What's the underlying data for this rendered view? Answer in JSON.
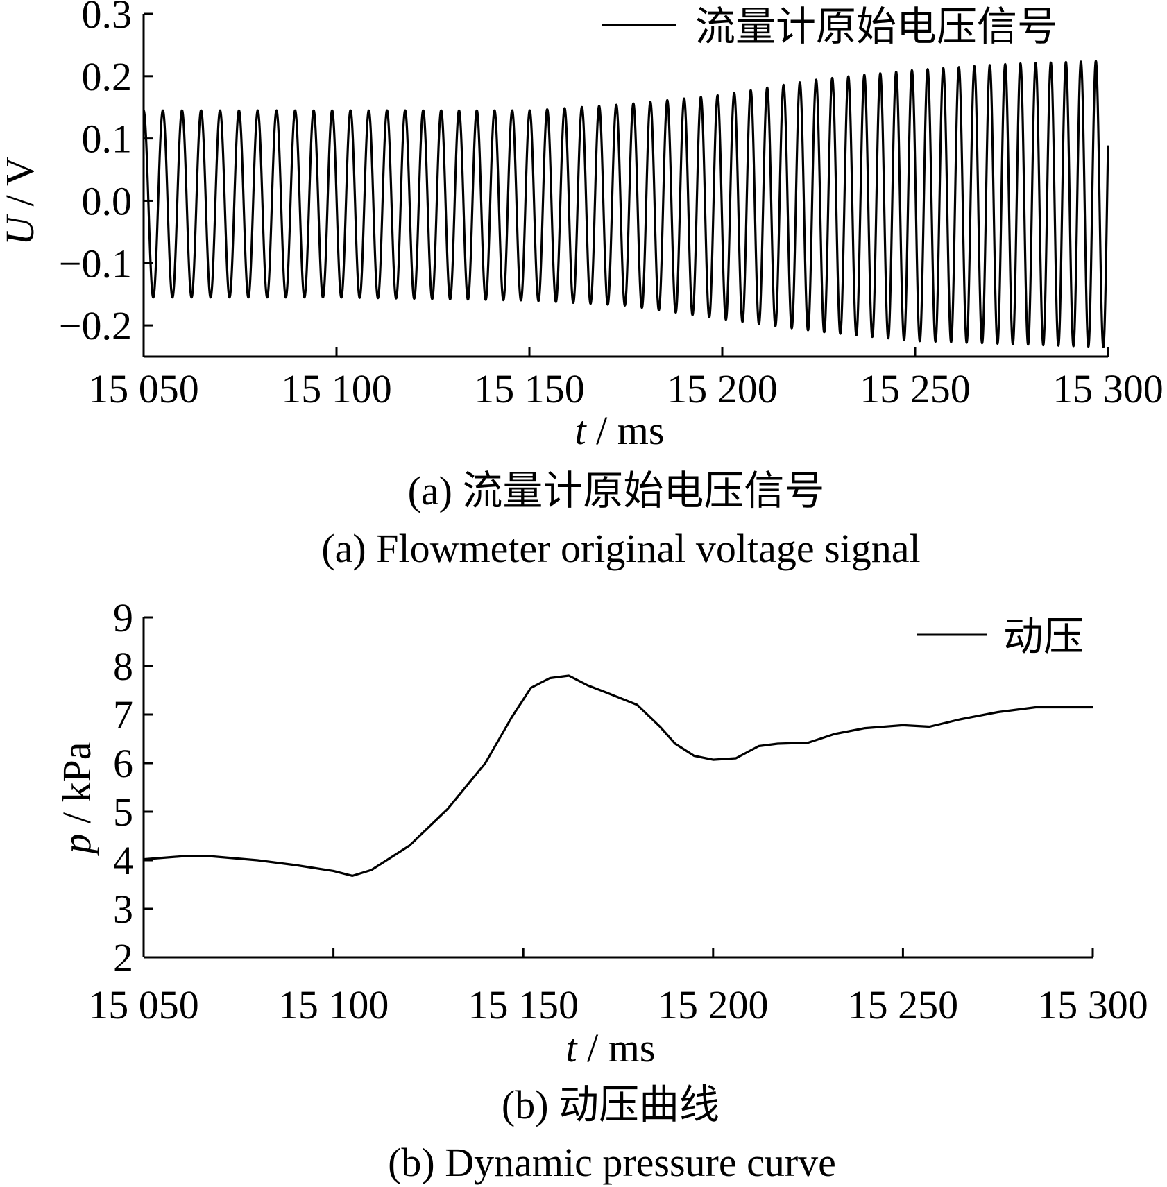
{
  "chart_data": [
    {
      "type": "line",
      "id": "a",
      "xlabel": {
        "var": "t",
        "unit": " / ms"
      },
      "ylabel": {
        "var": "U",
        "unit": " / V"
      },
      "xlim": [
        15050,
        15300
      ],
      "ylim": [
        -0.25,
        0.3
      ],
      "x_ticks": [
        15050,
        15100,
        15150,
        15200,
        15250,
        15300
      ],
      "x_tick_labels": [
        "15 050",
        "15 100",
        "15 150",
        "15 200",
        "15 250",
        "15 300"
      ],
      "y_ticks": [
        -0.2,
        -0.1,
        0.0,
        0.1,
        0.2,
        0.3
      ],
      "y_tick_labels": [
        "−0.2",
        "−0.1",
        "0.0",
        "0.1",
        "0.2",
        "0.3"
      ],
      "legend": {
        "position": "top-right"
      },
      "grid": false,
      "series": [
        {
          "name": "流量计原始电压信号",
          "color": "#000000",
          "style": "oscillation",
          "period_ms": [
            5.0,
            3.85
          ],
          "envelope": {
            "x": [
              15050,
              15100,
              15150,
              15175,
              15200,
              15225,
              15250,
              15275,
              15300
            ],
            "max": [
              0.145,
              0.145,
              0.145,
              0.155,
              0.17,
              0.195,
              0.21,
              0.22,
              0.225
            ],
            "min": [
              -0.155,
              -0.155,
              -0.16,
              -0.168,
              -0.19,
              -0.21,
              -0.225,
              -0.23,
              -0.235
            ]
          }
        }
      ],
      "caption_zh": "(a) 流量计原始电压信号",
      "caption_en": "(a) Flowmeter original voltage signal"
    },
    {
      "type": "line",
      "id": "b",
      "xlabel": {
        "var": "t",
        "unit": " / ms"
      },
      "ylabel": {
        "var": "p",
        "unit": " / kPa"
      },
      "xlim": [
        15050,
        15300
      ],
      "ylim": [
        2,
        9
      ],
      "x_ticks": [
        15050,
        15100,
        15150,
        15200,
        15250,
        15300
      ],
      "x_tick_labels": [
        "15 050",
        "15 100",
        "15 150",
        "15 200",
        "15 250",
        "15 300"
      ],
      "y_ticks": [
        2,
        3,
        4,
        5,
        6,
        7,
        8,
        9
      ],
      "y_tick_labels": [
        "2",
        "3",
        "4",
        "5",
        "6",
        "7",
        "8",
        "9"
      ],
      "legend": {
        "position": "top-right"
      },
      "grid": false,
      "series": [
        {
          "name": "动压",
          "color": "#000000",
          "x": [
            15050,
            15060,
            15068,
            15080,
            15090,
            15100,
            15105,
            15110,
            15120,
            15130,
            15140,
            15147,
            15152,
            15157,
            15162,
            15167,
            15172,
            15180,
            15186,
            15190,
            15195,
            15200,
            15206,
            15212,
            15217,
            15225,
            15232,
            15240,
            15250,
            15257,
            15265,
            15275,
            15285,
            15300
          ],
          "y": [
            4.02,
            4.08,
            4.08,
            4.0,
            3.9,
            3.78,
            3.68,
            3.8,
            4.3,
            5.05,
            6.0,
            6.95,
            7.55,
            7.75,
            7.8,
            7.6,
            7.45,
            7.2,
            6.75,
            6.4,
            6.15,
            6.07,
            6.1,
            6.35,
            6.4,
            6.42,
            6.6,
            6.72,
            6.78,
            6.75,
            6.9,
            7.05,
            7.15,
            7.15
          ]
        }
      ],
      "caption_zh": "(b) 动压曲线",
      "caption_en": "(b) Dynamic pressure curve"
    }
  ]
}
